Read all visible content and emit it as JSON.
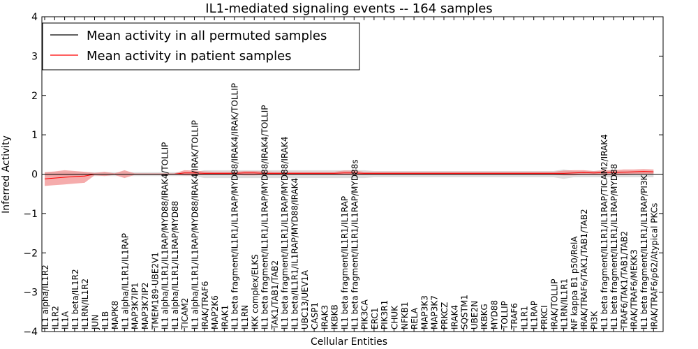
{
  "chart_data": {
    "type": "line",
    "title": "IL1-mediated signaling events -- 164 samples",
    "xlabel": "Cellular Entities",
    "ylabel": "Inferred Activity",
    "ylim": [
      -4,
      4
    ],
    "yticks": [
      "4",
      "3",
      "2",
      "1",
      "0",
      "−1",
      "−2",
      "−3",
      "−4"
    ],
    "legend": {
      "placement": "top-left",
      "entries": [
        {
          "label": "Mean activity in all permuted samples",
          "color": "#000000"
        },
        {
          "label": "Mean activity in patient samples",
          "color": "#ff0000"
        }
      ]
    },
    "categories": [
      "IL1 alpha/IL1R2",
      "IL1R2",
      "IL1A",
      "IL1 beta/IL1R2",
      "IL1RN/IL1R2",
      "JUN",
      "IL1B",
      "MAPK8",
      "IL1 alpha/IL1R1/IL1RAP",
      "MAP3K7IP1",
      "MAP3K7IP2",
      "TMEM189-UBE2V1",
      "IL1 alpha/IL1R1/IL1RAP/MYD88/IRAK4/TOLLIP",
      "IL1 alpha/IL1R1/IL1RAP/MYD88",
      "TICAM2",
      "IL1 alpha/IL1R1/IL1RAP/MYD88/IRAK4/IRAK/TOLLIP",
      "IRAK/TRAF6",
      "MAP2K6",
      "IRAK1",
      "IL1 beta fragment/IL1R1/IL1RAP/MYD88/IRAK4/IRAK/TOLLIP",
      "IL1RN",
      "IKK complex/ELKS",
      "IL1 beta fragment/IL1R1/IL1RAP/MYD88/IRAK4/TOLLIP",
      "TAK1/TAB1/TAB2",
      "IL1 beta fragment/IL1R1/IL1RAP/MYD88/IRAK4",
      "IL1 beta/IL1R1/IL1RAP/MYD88/IRAK4",
      "UBC13/UEV1A",
      "CASP1",
      "IRAK3",
      "IKBKB",
      "IL1 beta fragment/IL1R1/IL1RAP",
      "IL1 beta fragment/IL1R1/IL1RAP/MYD88s",
      "PIK3CA",
      "ERC1",
      "PIK3R1",
      "CHUK",
      "NFKB1",
      "RELA",
      "MAP3K3",
      "MAP3K7",
      "PRKCZ",
      "IRAK4",
      "SQSTM1",
      "UBE2N",
      "IKBKG",
      "MYD88",
      "TOLLIP",
      "TRAF6",
      "IL1R1",
      "IL1RAP",
      "PRKCI",
      "IRAK/TOLLIP",
      "IL1RN/IL1R1",
      "NF kappa B1 p50/RelA",
      "IRAK/TRAF6/TAK1/TAB1/TAB2",
      "PI3K",
      "IL1 beta fragment/IL1R1/IL1RAP/TICAM2/IRAK4",
      "IL1 beta fragment/IL1R1/IL1RAP/MYD88",
      "TRAF6/TAK1/TAB1/TAB2",
      "IRAK/TRAF6/MEKK3",
      "IL1 beta fragment/IL1R1/IL1RAP/PI3K",
      "IRAK/TRAF6/p62/Atypical PKCs"
    ],
    "series": [
      {
        "name": "Mean activity in all permuted samples",
        "color": "#000000",
        "values": [
          0.0,
          0.0,
          0.0,
          0.0,
          0.0,
          0.0,
          0.0,
          0.0,
          0.0,
          0.0,
          0.0,
          0.0,
          0.0,
          0.0,
          0.0,
          0.0,
          0.0,
          0.0,
          0.0,
          0.0,
          0.0,
          0.0,
          0.0,
          0.0,
          0.0,
          0.0,
          0.0,
          0.0,
          0.0,
          0.0,
          0.0,
          0.0,
          0.0,
          0.0,
          0.0,
          0.0,
          0.0,
          0.0,
          0.0,
          0.0,
          0.0,
          0.0,
          0.0,
          0.0,
          0.0,
          0.0,
          0.0,
          0.0,
          0.0,
          0.0,
          0.0,
          0.0,
          0.0,
          0.0,
          0.0,
          0.0,
          0.0,
          0.0,
          0.0,
          0.0,
          0.0,
          0.0
        ],
        "lower": [
          -0.05,
          -0.05,
          -0.05,
          -0.05,
          -0.05,
          -0.05,
          -0.05,
          -0.05,
          -0.05,
          -0.05,
          -0.05,
          -0.05,
          -0.05,
          -0.05,
          -0.05,
          -0.05,
          -0.1,
          -0.1,
          -0.1,
          -0.1,
          -0.1,
          -0.1,
          -0.1,
          -0.1,
          -0.1,
          -0.1,
          -0.1,
          -0.1,
          -0.1,
          -0.1,
          -0.1,
          -0.1,
          -0.1,
          -0.08,
          -0.08,
          -0.08,
          -0.08,
          -0.08,
          -0.08,
          -0.08,
          -0.08,
          -0.08,
          -0.08,
          -0.08,
          -0.08,
          -0.08,
          -0.08,
          -0.08,
          -0.08,
          -0.08,
          -0.08,
          -0.08,
          -0.12,
          -0.08,
          -0.08,
          -0.08,
          -0.08,
          -0.08,
          -0.08,
          -0.08,
          -0.08,
          -0.08
        ],
        "upper": [
          0.05,
          0.05,
          0.05,
          0.05,
          0.05,
          0.05,
          0.05,
          0.05,
          0.05,
          0.05,
          0.05,
          0.05,
          0.05,
          0.05,
          0.05,
          0.05,
          0.1,
          0.1,
          0.1,
          0.1,
          0.1,
          0.1,
          0.1,
          0.1,
          0.1,
          0.1,
          0.1,
          0.1,
          0.1,
          0.1,
          0.1,
          0.1,
          0.1,
          0.08,
          0.08,
          0.08,
          0.08,
          0.08,
          0.08,
          0.08,
          0.08,
          0.08,
          0.08,
          0.08,
          0.08,
          0.08,
          0.08,
          0.08,
          0.08,
          0.08,
          0.08,
          0.08,
          0.12,
          0.08,
          0.08,
          0.08,
          0.08,
          0.08,
          0.08,
          0.08,
          0.08,
          0.08
        ]
      },
      {
        "name": "Mean activity in patient samples",
        "color": "#ff0000",
        "band_color": "#f08080",
        "values": [
          -0.12,
          -0.1,
          -0.08,
          -0.06,
          -0.05,
          0.0,
          0.0,
          0.0,
          0.0,
          0.0,
          0.0,
          0.0,
          0.0,
          0.0,
          0.03,
          0.03,
          0.02,
          0.02,
          0.02,
          0.02,
          0.03,
          0.03,
          0.02,
          0.02,
          0.02,
          0.02,
          0.02,
          0.02,
          0.02,
          0.02,
          0.03,
          0.03,
          0.02,
          0.02,
          0.02,
          0.02,
          0.02,
          0.02,
          0.02,
          0.02,
          0.02,
          0.02,
          0.02,
          0.02,
          0.02,
          0.02,
          0.02,
          0.02,
          0.02,
          0.02,
          0.02,
          0.02,
          0.02,
          0.03,
          0.04,
          0.03,
          0.04,
          0.04,
          0.05,
          0.06,
          0.07,
          0.06
        ],
        "lower": [
          -0.3,
          -0.28,
          -0.26,
          -0.24,
          -0.22,
          -0.03,
          -0.05,
          -0.02,
          -0.1,
          -0.02,
          -0.02,
          -0.02,
          -0.02,
          -0.02,
          -0.03,
          -0.03,
          -0.02,
          -0.02,
          -0.02,
          -0.02,
          -0.03,
          -0.03,
          -0.02,
          -0.02,
          -0.02,
          -0.02,
          -0.02,
          -0.02,
          -0.02,
          -0.02,
          -0.02,
          -0.02,
          -0.02,
          -0.02,
          -0.02,
          -0.02,
          -0.02,
          -0.02,
          -0.02,
          -0.02,
          -0.02,
          -0.02,
          -0.02,
          -0.02,
          -0.02,
          -0.02,
          -0.02,
          -0.02,
          -0.02,
          -0.02,
          -0.02,
          -0.02,
          -0.03,
          -0.03,
          -0.02,
          -0.02,
          -0.02,
          -0.02,
          -0.02,
          -0.01,
          0.0,
          0.0
        ],
        "upper": [
          0.05,
          0.07,
          0.1,
          0.08,
          0.06,
          0.03,
          0.06,
          0.02,
          0.1,
          0.02,
          0.02,
          0.02,
          0.02,
          0.02,
          0.1,
          0.09,
          0.07,
          0.06,
          0.06,
          0.06,
          0.08,
          0.08,
          0.07,
          0.06,
          0.06,
          0.06,
          0.06,
          0.06,
          0.06,
          0.06,
          0.09,
          0.09,
          0.06,
          0.06,
          0.06,
          0.06,
          0.06,
          0.06,
          0.06,
          0.06,
          0.06,
          0.06,
          0.06,
          0.06,
          0.06,
          0.06,
          0.06,
          0.06,
          0.06,
          0.06,
          0.06,
          0.06,
          0.09,
          0.1,
          0.1,
          0.08,
          0.1,
          0.1,
          0.12,
          0.12,
          0.13,
          0.12
        ]
      }
    ]
  }
}
